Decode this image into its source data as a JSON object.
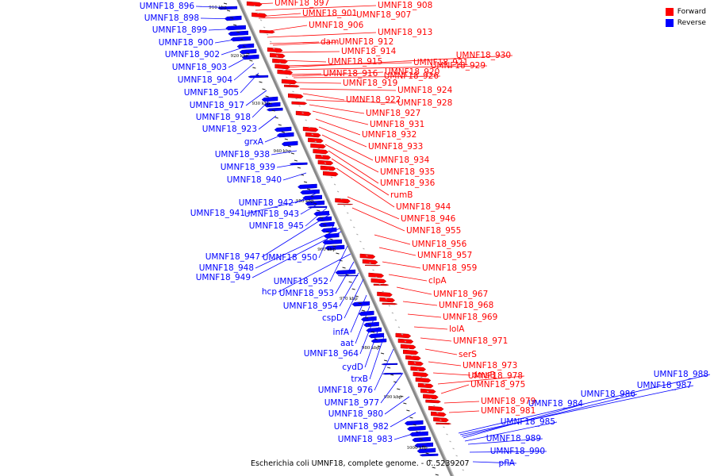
{
  "caption": "Escherichia coli UMNF18, complete genome. - 0..5239207",
  "legend": [
    {
      "label": "Forward",
      "color": "#ff0000"
    },
    {
      "label": "Reverse",
      "color": "#0000ff"
    }
  ],
  "colors": {
    "forward": "#ff0000",
    "reverse": "#0000ff",
    "backbone": "#888888"
  },
  "ticks": [
    "910 kbp",
    "920 kbp",
    "930 kbp",
    "940 kbp",
    "950 kbp",
    "960 kbp",
    "970 kbp",
    "980 kbp",
    "990 kbp",
    "1000 kbp"
  ],
  "forward_labels": [
    "UMNF18_897",
    "UMNF18_908",
    "UMNF18_901",
    "UMNF18_907",
    "UMNF18_906",
    "UMNF18_913",
    "dam",
    "UMNF18_912",
    "UMNF18_914",
    "UMNF18_915",
    "UMNF18_921",
    "UMNF18_930",
    "UMNF18_929",
    "UMNF18_916",
    "UMNF18_920",
    "UMNF18_926",
    "UMNF18_919",
    "UMNF18_924",
    "UMNF18_922",
    "UMNF18_928",
    "UMNF18_927",
    "UMNF18_931",
    "UMNF18_932",
    "UMNF18_933",
    "UMNF18_934",
    "UMNF18_935",
    "UMNF18_936",
    "rumB",
    "UMNF18_944",
    "UMNF18_946",
    "UMNF18_955",
    "UMNF18_956",
    "UMNF18_957",
    "UMNF18_959",
    "clpA",
    "UMNF18_967",
    "UMNF18_968",
    "UMNF18_969",
    "lolA",
    "UMNF18_971",
    "serS",
    "UMNF18_973",
    "dmsB",
    "UMNF18_978",
    "UMNF18_975",
    "UMNF18_979",
    "UMNF18_981"
  ],
  "reverse_labels": [
    "UMNF18_896",
    "UMNF18_898",
    "UMNF18_899",
    "UMNF18_900",
    "UMNF18_902",
    "UMNF18_903",
    "UMNF18_904",
    "UMNF18_905",
    "UMNF18_917",
    "UMNF18_918",
    "UMNF18_923",
    "grxA",
    "UMNF18_938",
    "UMNF18_939",
    "UMNF18_940",
    "UMNF18_942",
    "UMNF18_941",
    "UMNF18_943",
    "UMNF18_945",
    "UMNF18_947",
    "UMNF18_950",
    "UMNF18_948",
    "UMNF18_949",
    "UMNF18_952",
    "hcp",
    "UMNF18_953",
    "UMNF18_954",
    "cspD",
    "infA",
    "aat",
    "UMNF18_964",
    "cydD",
    "trxB",
    "UMNF18_976",
    "UMNF18_977",
    "UMNF18_980",
    "UMNF18_982",
    "UMNF18_983",
    "UMNF18_988",
    "UMNF18_987",
    "UMNF18_986",
    "UMNF18_984",
    "UMNF18_985",
    "UMNF18_989",
    "UMNF18_990",
    "pflA"
  ]
}
